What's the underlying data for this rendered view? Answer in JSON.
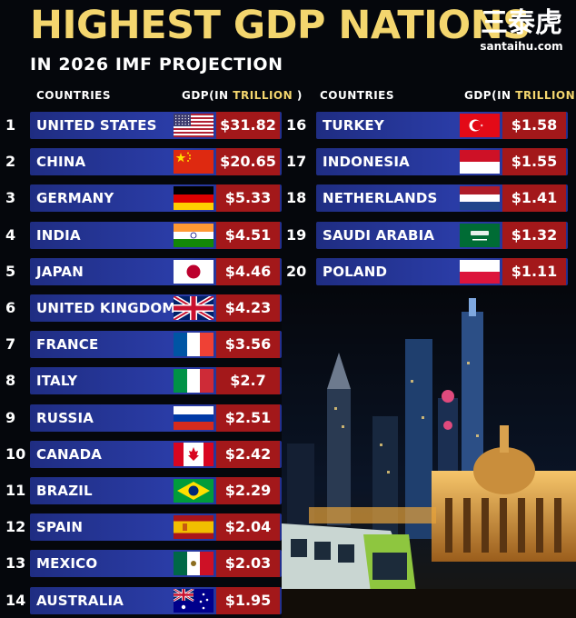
{
  "title": "HIGHEST GDP NATIONS",
  "subtitle": "IN 2026 IMF PROJECTION",
  "logo": {
    "chinese": "三泰虎",
    "site": "santaihu.com"
  },
  "headers": {
    "countries": "COUNTRIES",
    "gdp_prefix": "GDP(IN ",
    "gdp_highlight": "TRILLION",
    "gdp_suffix": " )"
  },
  "colors": {
    "title": "#f4d66e",
    "bar": "#2a3ca6",
    "value_box": "#a3181a"
  },
  "chart_data": {
    "type": "table",
    "title": "HIGHEST GDP NATIONS",
    "subtitle": "IN 2026 IMF PROJECTION",
    "columns": [
      "COUNTRIES",
      "GDP(IN TRILLION )"
    ],
    "rows": [
      {
        "rank": "1",
        "country": "UNITED STATES",
        "flag": "us-flag-icon",
        "value": 31.82,
        "label": "$31.82"
      },
      {
        "rank": "2",
        "country": "CHINA",
        "flag": "cn-flag-icon",
        "value": 20.65,
        "label": "$20.65"
      },
      {
        "rank": "3",
        "country": "GERMANY",
        "flag": "de-flag-icon",
        "value": 5.33,
        "label": "$5.33"
      },
      {
        "rank": "4",
        "country": "INDIA",
        "flag": "in-flag-icon",
        "value": 4.51,
        "label": "$4.51"
      },
      {
        "rank": "5",
        "country": "JAPAN",
        "flag": "jp-flag-icon",
        "value": 4.46,
        "label": "$4.46"
      },
      {
        "rank": "6",
        "country": "UNITED KINGDOM",
        "flag": "gb-flag-icon",
        "value": 4.23,
        "label": "$4.23"
      },
      {
        "rank": "7",
        "country": "FRANCE",
        "flag": "fr-flag-icon",
        "value": 3.56,
        "label": "$3.56"
      },
      {
        "rank": "8",
        "country": "ITALY",
        "flag": "it-flag-icon",
        "value": 2.7,
        "label": "$2.7"
      },
      {
        "rank": "9",
        "country": "RUSSIA",
        "flag": "ru-flag-icon",
        "value": 2.51,
        "label": "$2.51"
      },
      {
        "rank": "10",
        "country": "CANADA",
        "flag": "ca-flag-icon",
        "value": 2.42,
        "label": "$2.42"
      },
      {
        "rank": "11",
        "country": "BRAZIL",
        "flag": "br-flag-icon",
        "value": 2.29,
        "label": "$2.29"
      },
      {
        "rank": "12",
        "country": "SPAIN",
        "flag": "es-flag-icon",
        "value": 2.04,
        "label": "$2.04"
      },
      {
        "rank": "13",
        "country": "MEXICO",
        "flag": "mx-flag-icon",
        "value": 2.03,
        "label": "$2.03"
      },
      {
        "rank": "14",
        "country": "AUSTRALIA",
        "flag": "au-flag-icon",
        "value": 1.95,
        "label": "$1.95"
      },
      {
        "rank": "16",
        "country": "TURKEY",
        "flag": "tr-flag-icon",
        "value": 1.58,
        "label": "$1.58"
      },
      {
        "rank": "17",
        "country": "INDONESIA",
        "flag": "id-flag-icon",
        "value": 1.55,
        "label": "$1.55"
      },
      {
        "rank": "18",
        "country": "NETHERLANDS",
        "flag": "nl-flag-icon",
        "value": 1.41,
        "label": "$1.41"
      },
      {
        "rank": "19",
        "country": "SAUDI ARABIA",
        "flag": "sa-flag-icon",
        "value": 1.32,
        "label": "$1.32"
      },
      {
        "rank": "20",
        "country": "POLAND",
        "flag": "pl-flag-icon",
        "value": 1.11,
        "label": "$1.11"
      }
    ]
  }
}
